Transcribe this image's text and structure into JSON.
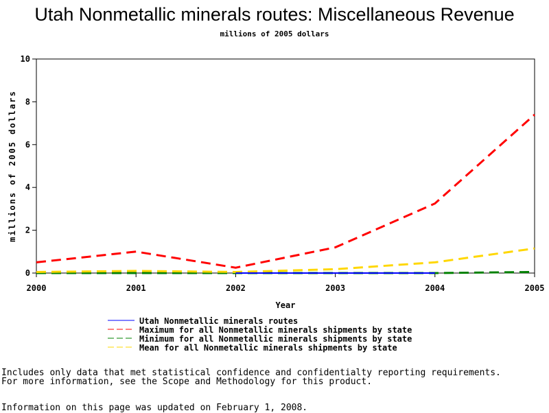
{
  "chart_data": {
    "type": "line",
    "title": "Utah Nonmetallic minerals routes: Miscellaneous Revenue",
    "subtitle": "millions of 2005 dollars",
    "xlabel": "Year",
    "ylabel": "millions of 2005 dollars",
    "xlim": [
      2000,
      2005
    ],
    "ylim": [
      0,
      10
    ],
    "xticks": [
      "2000",
      "2001",
      "2002",
      "2003",
      "2004",
      "2005"
    ],
    "yticks": [
      "0",
      "2",
      "4",
      "6",
      "8",
      "10"
    ],
    "grid": false,
    "legend_placement": "bottom",
    "series": [
      {
        "name": "Utah Nonmetallic minerals routes",
        "color": "#0000ff",
        "dash": "solid",
        "x": [
          2002,
          2003,
          2004
        ],
        "y": [
          0,
          0,
          0
        ]
      },
      {
        "name": "Maximum for all Nonmetallic minerals shipments by state",
        "color": "#ff0000",
        "dash": "dashed",
        "x": [
          2000,
          2001,
          2002,
          2003,
          2004,
          2005
        ],
        "y": [
          0.5,
          1.0,
          0.25,
          1.2,
          3.25,
          7.4
        ]
      },
      {
        "name": "Minimum for all Nonmetallic minerals shipments by state",
        "color": "#008000",
        "dash": "dashed",
        "x": [
          2000,
          2001,
          2002,
          2003,
          2004,
          2005
        ],
        "y": [
          0,
          0,
          0,
          0,
          0,
          0.05
        ]
      },
      {
        "name": "Mean for all Nonmetallic minerals shipments by state",
        "color": "#ffd700",
        "dash": "dashed",
        "x": [
          2000,
          2001,
          2002,
          2003,
          2004,
          2005
        ],
        "y": [
          0.05,
          0.1,
          0.05,
          0.18,
          0.5,
          1.15
        ]
      }
    ]
  },
  "footer": {
    "line1": "Includes only data that met statistical confidence and confidentialty reporting requirements.",
    "line2": "For more information, see the Scope and Methodology for this product.",
    "line3": "Information on this page was updated on February 1, 2008."
  }
}
